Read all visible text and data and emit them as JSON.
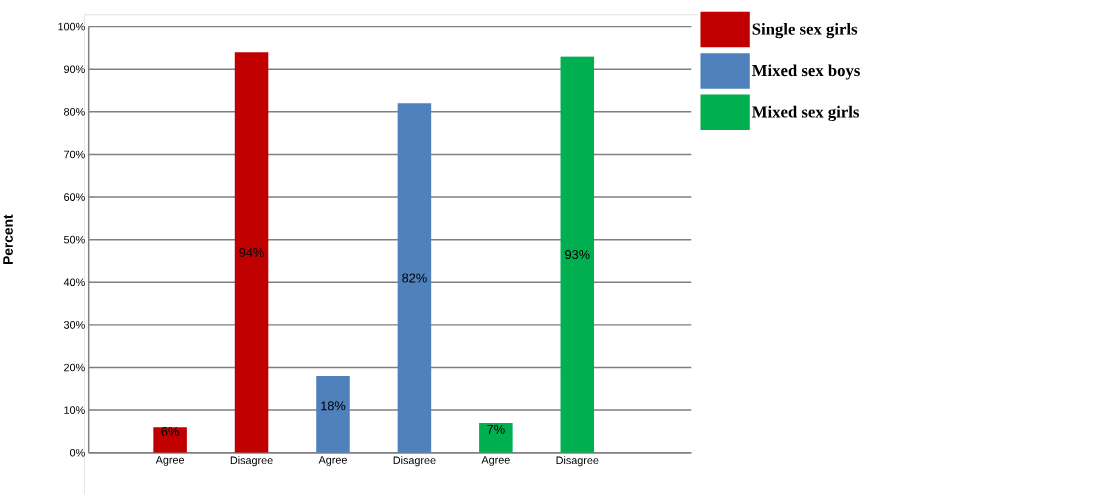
{
  "chart_data": {
    "type": "bar",
    "ylabel": "Percent",
    "categories": [
      "Agree",
      "Disagree",
      "Agree",
      "Disagree",
      "Agree",
      "Disagree"
    ],
    "series": [
      {
        "name": "Single sex girls",
        "color": "#c00000",
        "values": [
          6,
          94,
          null,
          null,
          null,
          null
        ],
        "value_labels": [
          "6%",
          "94%",
          null,
          null,
          null,
          null
        ]
      },
      {
        "name": "Mixed sex boys",
        "color": "#4f81bd",
        "values": [
          null,
          null,
          18,
          82,
          null,
          null
        ],
        "value_labels": [
          null,
          null,
          "18%",
          "82%",
          null,
          null
        ]
      },
      {
        "name": "Mixed sex girls",
        "color": "#00b050",
        "values": [
          null,
          null,
          null,
          null,
          7,
          93
        ],
        "value_labels": [
          null,
          null,
          null,
          null,
          "7%",
          "93%"
        ]
      }
    ],
    "ylim": [
      0,
      100
    ],
    "yticks": [
      {
        "value": 0,
        "label": "0%"
      },
      {
        "value": 10,
        "label": "10%"
      },
      {
        "value": 20,
        "label": "20%"
      },
      {
        "value": 30,
        "label": "30%"
      },
      {
        "value": 40,
        "label": "40%"
      },
      {
        "value": 50,
        "label": "50%"
      },
      {
        "value": 60,
        "label": "60%"
      },
      {
        "value": 70,
        "label": "70%"
      },
      {
        "value": 80,
        "label": "80%"
      },
      {
        "value": 90,
        "label": "90%"
      },
      {
        "value": 100,
        "label": "100%"
      }
    ],
    "grid": "y",
    "legend": "top right"
  }
}
